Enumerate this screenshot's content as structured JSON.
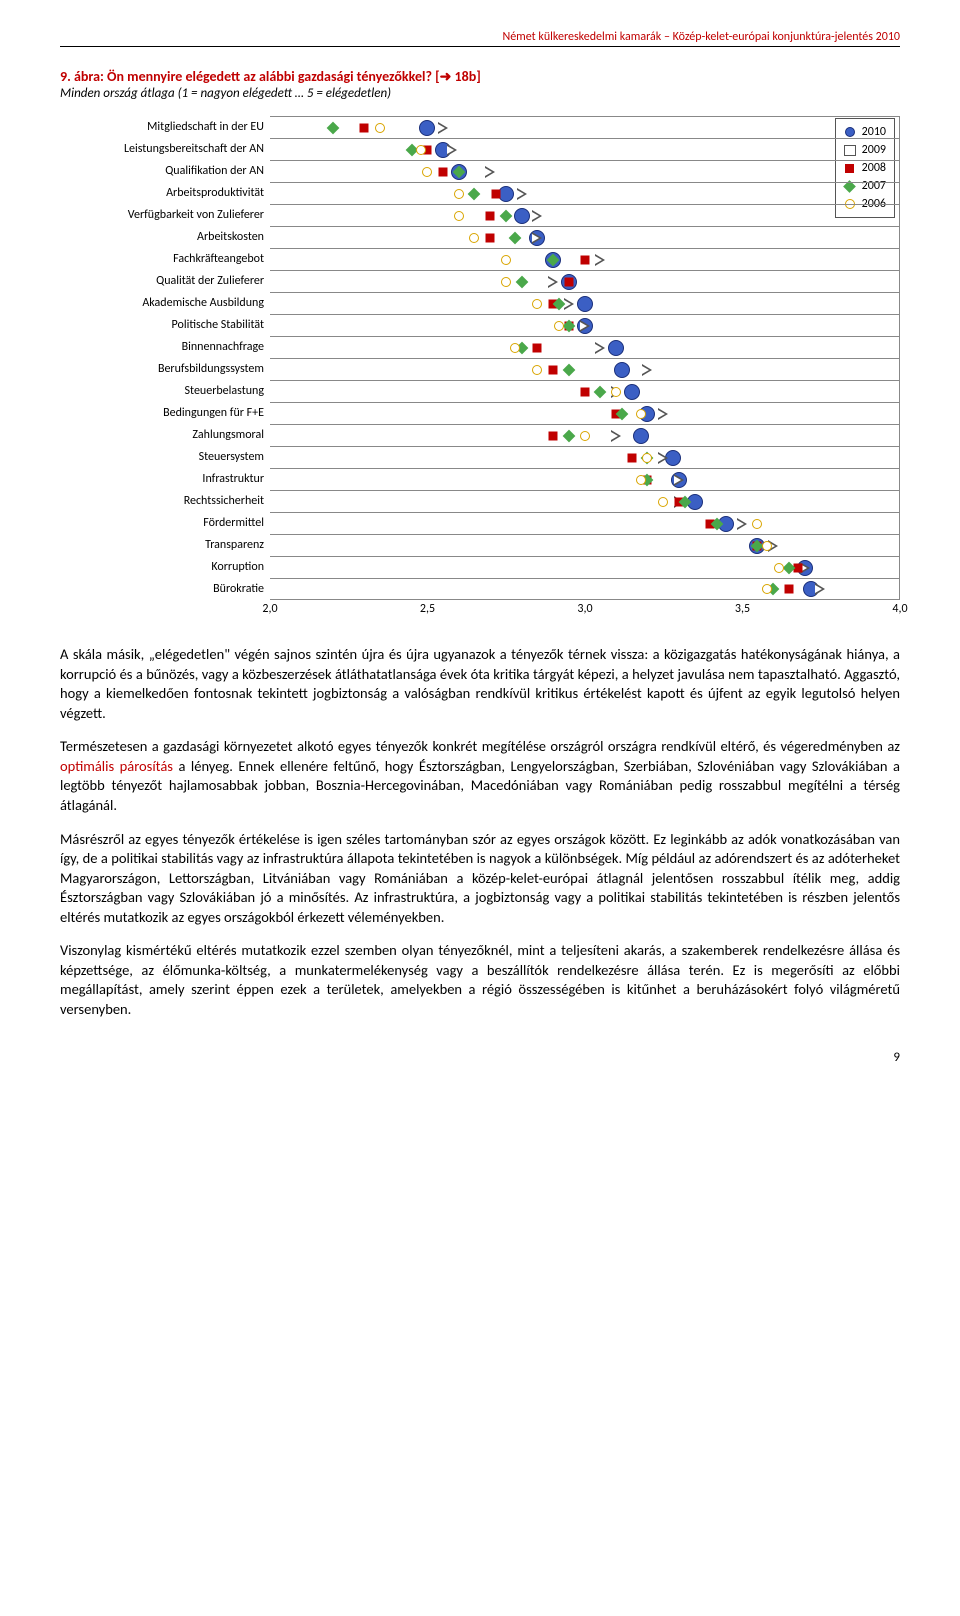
{
  "header": "Német külkereskedelmi kamarák – Közép-kelet-európai konjunktúra-jelentés 2010",
  "chart": {
    "title_prefix": "9. ábra: ",
    "title": "Ön mennyire elégedett az alábbi gazdasági tényezőkkel?",
    "title_suffix": " [➜ 18b]",
    "subtitle": "Minden ország átlaga (1 = nagyon elégedett … 5 = elégedetlen)",
    "xmin": 2.0,
    "xmax": 4.0,
    "xticks": [
      "2,0",
      "2,5",
      "3,0",
      "3,5",
      "4,0"
    ],
    "xtick_vals": [
      2.0,
      2.5,
      3.0,
      3.5,
      4.0
    ],
    "categories": [
      "Mitgliedschaft in der EU",
      "Leistungsbereitschaft der AN",
      "Qualifikation der AN",
      "Arbeitsproduktivität",
      "Verfügbarkeit von Zulieferer",
      "Arbeitskosten",
      "Fachkräfteangebot",
      "Qualität der Zulieferer",
      "Akademische Ausbildung",
      "Politische Stabilität",
      "Binnennachfrage",
      "Berufsbildungssystem",
      "Steuerbelastung",
      "Bedingungen für F+E",
      "Zahlungsmoral",
      "Steuersystem",
      "Infrastruktur",
      "Rechtssicherheit",
      "Fördermittel",
      "Transparenz",
      "Korruption",
      "Bürokratie"
    ],
    "series": [
      {
        "year": "2010",
        "marker": "circle-big",
        "color": "#3b5fc4",
        "values": [
          2.5,
          2.55,
          2.6,
          2.75,
          2.8,
          2.85,
          2.9,
          2.95,
          3.0,
          3.0,
          3.1,
          3.12,
          3.15,
          3.2,
          3.18,
          3.28,
          3.3,
          3.35,
          3.45,
          3.55,
          3.7,
          3.72
        ]
      },
      {
        "year": "2009",
        "marker": "tri-right",
        "color": "#555",
        "values": [
          2.55,
          2.58,
          2.7,
          2.8,
          2.85,
          2.85,
          3.05,
          2.9,
          2.95,
          3.0,
          3.05,
          3.2,
          3.1,
          3.25,
          3.1,
          3.25,
          3.3,
          3.3,
          3.5,
          3.6,
          3.7,
          3.75
        ]
      },
      {
        "year": "2008",
        "marker": "square",
        "color": "#c00000",
        "values": [
          2.3,
          2.5,
          2.55,
          2.72,
          2.7,
          2.7,
          3.0,
          2.95,
          2.9,
          2.95,
          2.85,
          2.9,
          3.0,
          3.1,
          2.9,
          3.15,
          3.2,
          3.3,
          3.4,
          3.55,
          3.68,
          3.65
        ]
      },
      {
        "year": "2007",
        "marker": "diamond",
        "color": "#4aa84a",
        "values": [
          2.2,
          2.45,
          2.6,
          2.65,
          2.75,
          2.78,
          2.9,
          2.8,
          2.92,
          2.95,
          2.8,
          2.95,
          3.05,
          3.12,
          2.95,
          3.2,
          3.2,
          3.32,
          3.42,
          3.55,
          3.65,
          3.6
        ]
      },
      {
        "year": "2006",
        "marker": "circle-open",
        "color": "#d9a500",
        "values": [
          2.35,
          2.48,
          2.5,
          2.6,
          2.6,
          2.65,
          2.75,
          2.75,
          2.85,
          2.92,
          2.78,
          2.85,
          3.1,
          3.18,
          3.0,
          3.2,
          3.18,
          3.25,
          3.55,
          3.58,
          3.62,
          3.58
        ]
      }
    ],
    "legend": [
      "2010",
      "2009",
      "2008",
      "2007",
      "2006"
    ]
  },
  "paragraphs": [
    "A skála másik, „elégedetlen\" végén sajnos szintén újra és újra ugyanazok a tényezők térnek vissza: a közigazgatás hatékonyságának hiánya, a korrupció és a bűnözés, vagy a közbeszerzések átláthatatlansága évek óta kritika tárgyát képezi, a helyzet javulása nem tapasztalható. Aggasztó, hogy a kiemelkedően fontosnak tekintett jogbiztonság a valóságban rendkívül kritikus értékelést kapott és újfent az egyik legutolsó helyen végzett.",
    "Természetesen a gazdasági környezetet alkotó egyes tényezők konkrét megítélése országról országra rendkívül eltérő, és végeredményben az <span class='highlight'>optimális párosítás</span> a lényeg. Ennek ellenére feltűnő, hogy Észtországban, Lengyelországban, Szerbiában, Szlovéniában vagy Szlovákiában a legtöbb tényezőt hajlamosabbak jobban, Bosznia-Hercegovinában, Macedóniában vagy Romániában pedig rosszabbul megítélni a térség átlagánál.",
    "Másrészről az egyes tényezők értékelése is igen széles tartományban szór az egyes országok között. Ez leginkább az adók vonatkozásában van így, de a politikai stabilitás vagy az infrastruktúra állapota tekintetében is nagyok a különbségek. Míg például az adórendszert és az adóterheket Magyarországon, Lettországban, Litvániában vagy Romániában a közép-kelet-európai átlagnál jelentősen rosszabbul ítélik meg, addig Észtországban vagy Szlovákiában jó a minősítés. Az infrastruktúra, a jogbiztonság vagy a politikai stabilitás tekintetében is részben jelentős eltérés mutatkozik az egyes országokból érkezett véleményekben.",
    "Viszonylag kismértékű eltérés mutatkozik ezzel szemben olyan tényezőknél, mint a teljesíteni akarás, a szakemberek rendelkezésre állása és képzettsége, az élőmunka-költség, a munkatermelékenység vagy a beszállítók rendelkezésre állása terén. Ez is megerősíti az előbbi megállapítást, amely szerint éppen ezek a területek, amelyekben a régió összességében is kitűnhet a beruházásokért folyó világméretű versenyben."
  ],
  "page_number": "9"
}
